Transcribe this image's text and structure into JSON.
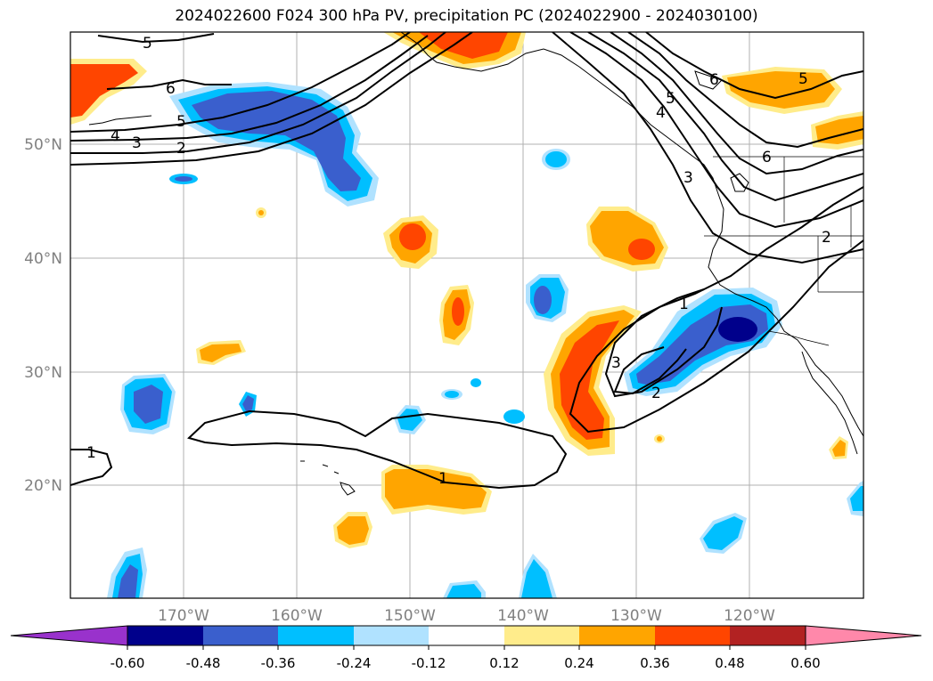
{
  "title": "2024022600 F024 300 hPa PV, precipitation PC (2024022900 - 2024030100)",
  "map": {
    "lat_labels": [
      "50°N",
      "40°N",
      "30°N",
      "20°N"
    ],
    "lon_labels": [
      "170°W",
      "160°W",
      "150°W",
      "140°W",
      "130°W",
      "120°W"
    ],
    "label_color": "#808080",
    "contour_labels": [
      "5",
      "6",
      "5",
      "4",
      "3",
      "2",
      "1",
      "3",
      "2",
      "1",
      "1",
      "5",
      "4",
      "3",
      "2",
      "6",
      "5",
      "6"
    ]
  },
  "colorbar": {
    "levels": [
      "-0.60",
      "-0.48",
      "-0.36",
      "-0.24",
      "-0.12",
      "0.12",
      "0.24",
      "0.36",
      "0.48",
      "0.60"
    ],
    "colors": [
      "#9932cc",
      "#00008b",
      "#3a5fcd",
      "#00bfff",
      "#b0e2ff",
      "#ffffff",
      "#ffec8b",
      "#ffa500",
      "#ff4500",
      "#b22222",
      "#ff88aa"
    ]
  }
}
